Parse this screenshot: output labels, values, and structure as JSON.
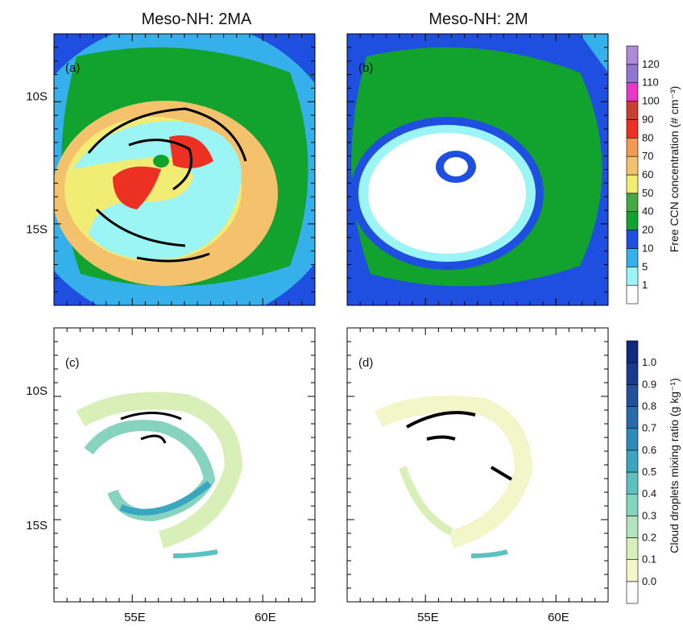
{
  "titles": {
    "left": "Meso-NH: 2MA",
    "right": "Meso-NH: 2M"
  },
  "panel_labels": [
    "(a)",
    "(b)",
    "(c)",
    "(d)"
  ],
  "y_ticks": [
    "10S",
    "15S"
  ],
  "x_ticks": [
    "55E",
    "60E"
  ],
  "colorbar_ccn": {
    "title": "Free CCN concentration (# cm⁻³)",
    "levels": [
      "1",
      "5",
      "10",
      "20",
      "40",
      "50",
      "60",
      "70",
      "80",
      "90",
      "100",
      "110",
      "120"
    ],
    "colors": [
      "#ffffff",
      "#9cf5f5",
      "#36b0ea",
      "#1e4fe0",
      "#12a32e",
      "#44a944",
      "#f0ec74",
      "#f4c26c",
      "#f09a52",
      "#ec3022",
      "#c84030",
      "#ec38c8",
      "#9078d0",
      "#b08ad8"
    ]
  },
  "colorbar_cloud": {
    "title": "Cloud droplets mixing ratio (g kg⁻¹)",
    "levels": [
      "0.0",
      "0.1",
      "0.2",
      "0.3",
      "0.4",
      "0.5",
      "0.6",
      "0.7",
      "0.8",
      "0.9",
      "1.0"
    ],
    "colors": [
      "#ffffff",
      "#f3f6c8",
      "#d9efb8",
      "#b4e3bf",
      "#86d3c0",
      "#5cc1c0",
      "#3aa6c0",
      "#2e8ab8",
      "#2a6aab",
      "#21509c",
      "#1a3a8e",
      "#0f2b7e"
    ]
  },
  "chart_data": [
    {
      "type": "heatmap",
      "title": "Meso-NH: 2MA",
      "label": "(a)",
      "field": "Free CCN concentration",
      "x_ticks": [
        "55E",
        "60E"
      ],
      "y_ticks": [
        "10S",
        "15S"
      ]
    },
    {
      "type": "heatmap",
      "title": "Meso-NH: 2M",
      "label": "(b)",
      "field": "Free CCN concentration",
      "x_ticks": [
        "55E",
        "60E"
      ],
      "y_ticks": [
        "10S",
        "15S"
      ]
    },
    {
      "type": "heatmap",
      "title": "",
      "label": "(c)",
      "field": "Cloud droplets mixing ratio",
      "x_ticks": [
        "55E",
        "60E"
      ],
      "y_ticks": [
        "10S",
        "15S"
      ]
    },
    {
      "type": "heatmap",
      "title": "",
      "label": "(d)",
      "field": "Cloud droplets mixing ratio",
      "x_ticks": [
        "55E",
        "60E"
      ],
      "y_ticks": [
        "10S",
        "15S"
      ]
    }
  ]
}
